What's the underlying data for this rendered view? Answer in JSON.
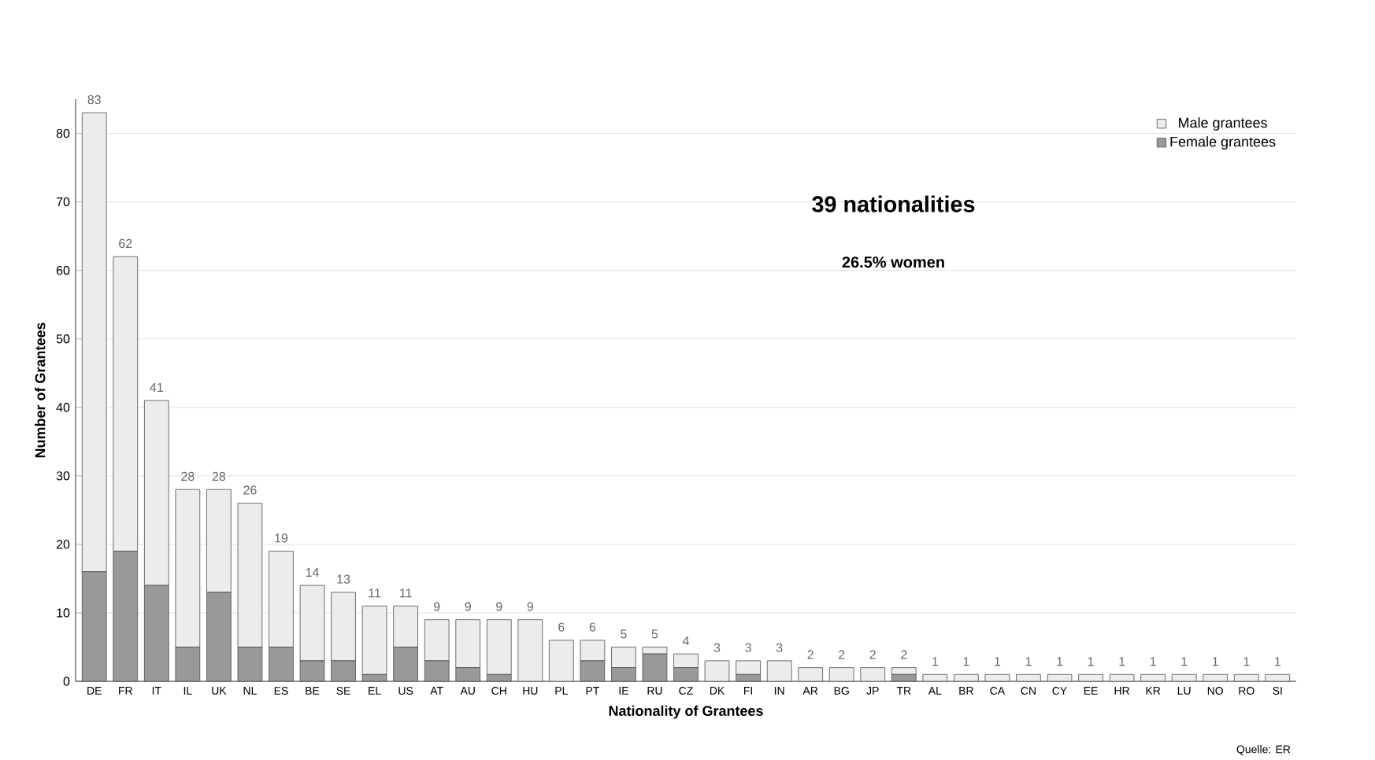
{
  "chart_data": {
    "type": "bar",
    "stacked": true,
    "xlabel": "Nationality of Grantees",
    "ylabel": "Number of Grantees",
    "categories": [
      "DE",
      "FR",
      "IT",
      "IL",
      "UK",
      "NL",
      "ES",
      "BE",
      "SE",
      "EL",
      "US",
      "AT",
      "AU",
      "CH",
      "HU",
      "PL",
      "PT",
      "IE",
      "RU",
      "CZ",
      "DK",
      "FI",
      "IN",
      "AR",
      "BG",
      "JP",
      "TR",
      "AL",
      "BR",
      "CA",
      "CN",
      "CY",
      "EE",
      "HR",
      "KR",
      "LU",
      "NO",
      "RO",
      "SI"
    ],
    "series": [
      {
        "name": "Female grantees",
        "color": "#999999",
        "values": [
          16,
          19,
          14,
          5,
          13,
          5,
          5,
          3,
          3,
          1,
          5,
          3,
          2,
          1,
          0,
          0,
          3,
          2,
          4,
          2,
          0,
          1,
          0,
          0,
          0,
          0,
          1,
          0,
          0,
          0,
          0,
          0,
          0,
          0,
          0,
          0,
          0,
          0,
          0
        ]
      },
      {
        "name": "Male grantees",
        "color": "#ececec",
        "values": [
          67,
          43,
          27,
          23,
          15,
          21,
          14,
          11,
          10,
          10,
          6,
          6,
          7,
          8,
          9,
          6,
          3,
          3,
          1,
          2,
          3,
          2,
          3,
          2,
          2,
          2,
          1,
          1,
          1,
          1,
          1,
          1,
          1,
          1,
          1,
          1,
          1,
          1,
          1
        ]
      }
    ],
    "totals": [
      "83",
      "62",
      "41",
      "28",
      "28",
      "26",
      "19",
      "14",
      "13",
      "11",
      "11",
      "9",
      "9",
      "9",
      "9",
      "6",
      "6",
      "5",
      "5",
      "4",
      "3",
      "3",
      "3",
      "2",
      "2",
      "2",
      "2",
      "1",
      "1",
      "1",
      "1",
      "1",
      "1",
      "1",
      "1",
      "1",
      "1",
      "1",
      "1"
    ],
    "ylim": [
      0,
      85
    ],
    "yticks": [
      0,
      10,
      20,
      30,
      40,
      50,
      60,
      70,
      80
    ],
    "grid": "y",
    "legend": "top right",
    "annotations": [
      "39 nationalities",
      "26.5% women",
      "Quelle: ER"
    ]
  }
}
